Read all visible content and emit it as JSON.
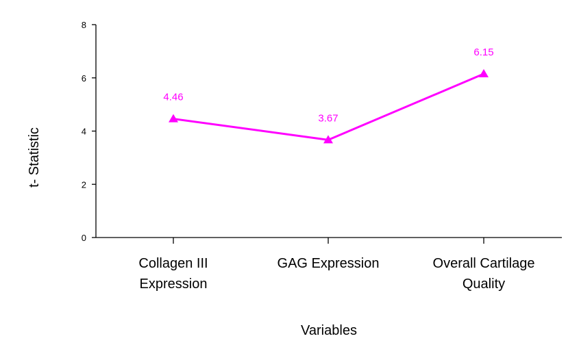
{
  "chart_data": {
    "type": "line",
    "categories": [
      [
        "Collagen III",
        "Expression"
      ],
      [
        "GAG Expression"
      ],
      [
        "Overall Cartilage",
        "Quality"
      ]
    ],
    "series": [
      {
        "values": [
          4.46,
          3.67,
          6.15
        ]
      }
    ],
    "data_labels": [
      "4.46",
      "3.67",
      "6.15"
    ],
    "y_ticks": [
      "0",
      "2",
      "4",
      "6",
      "8"
    ],
    "ylim": [
      0,
      8
    ],
    "xlabel": "Variables",
    "ylabel": "t- Statistic",
    "grid": false,
    "legend": "none",
    "marker": "triangle",
    "colors": {
      "series": "#ff00ff",
      "axis": "#000000",
      "text": "#000000"
    }
  }
}
